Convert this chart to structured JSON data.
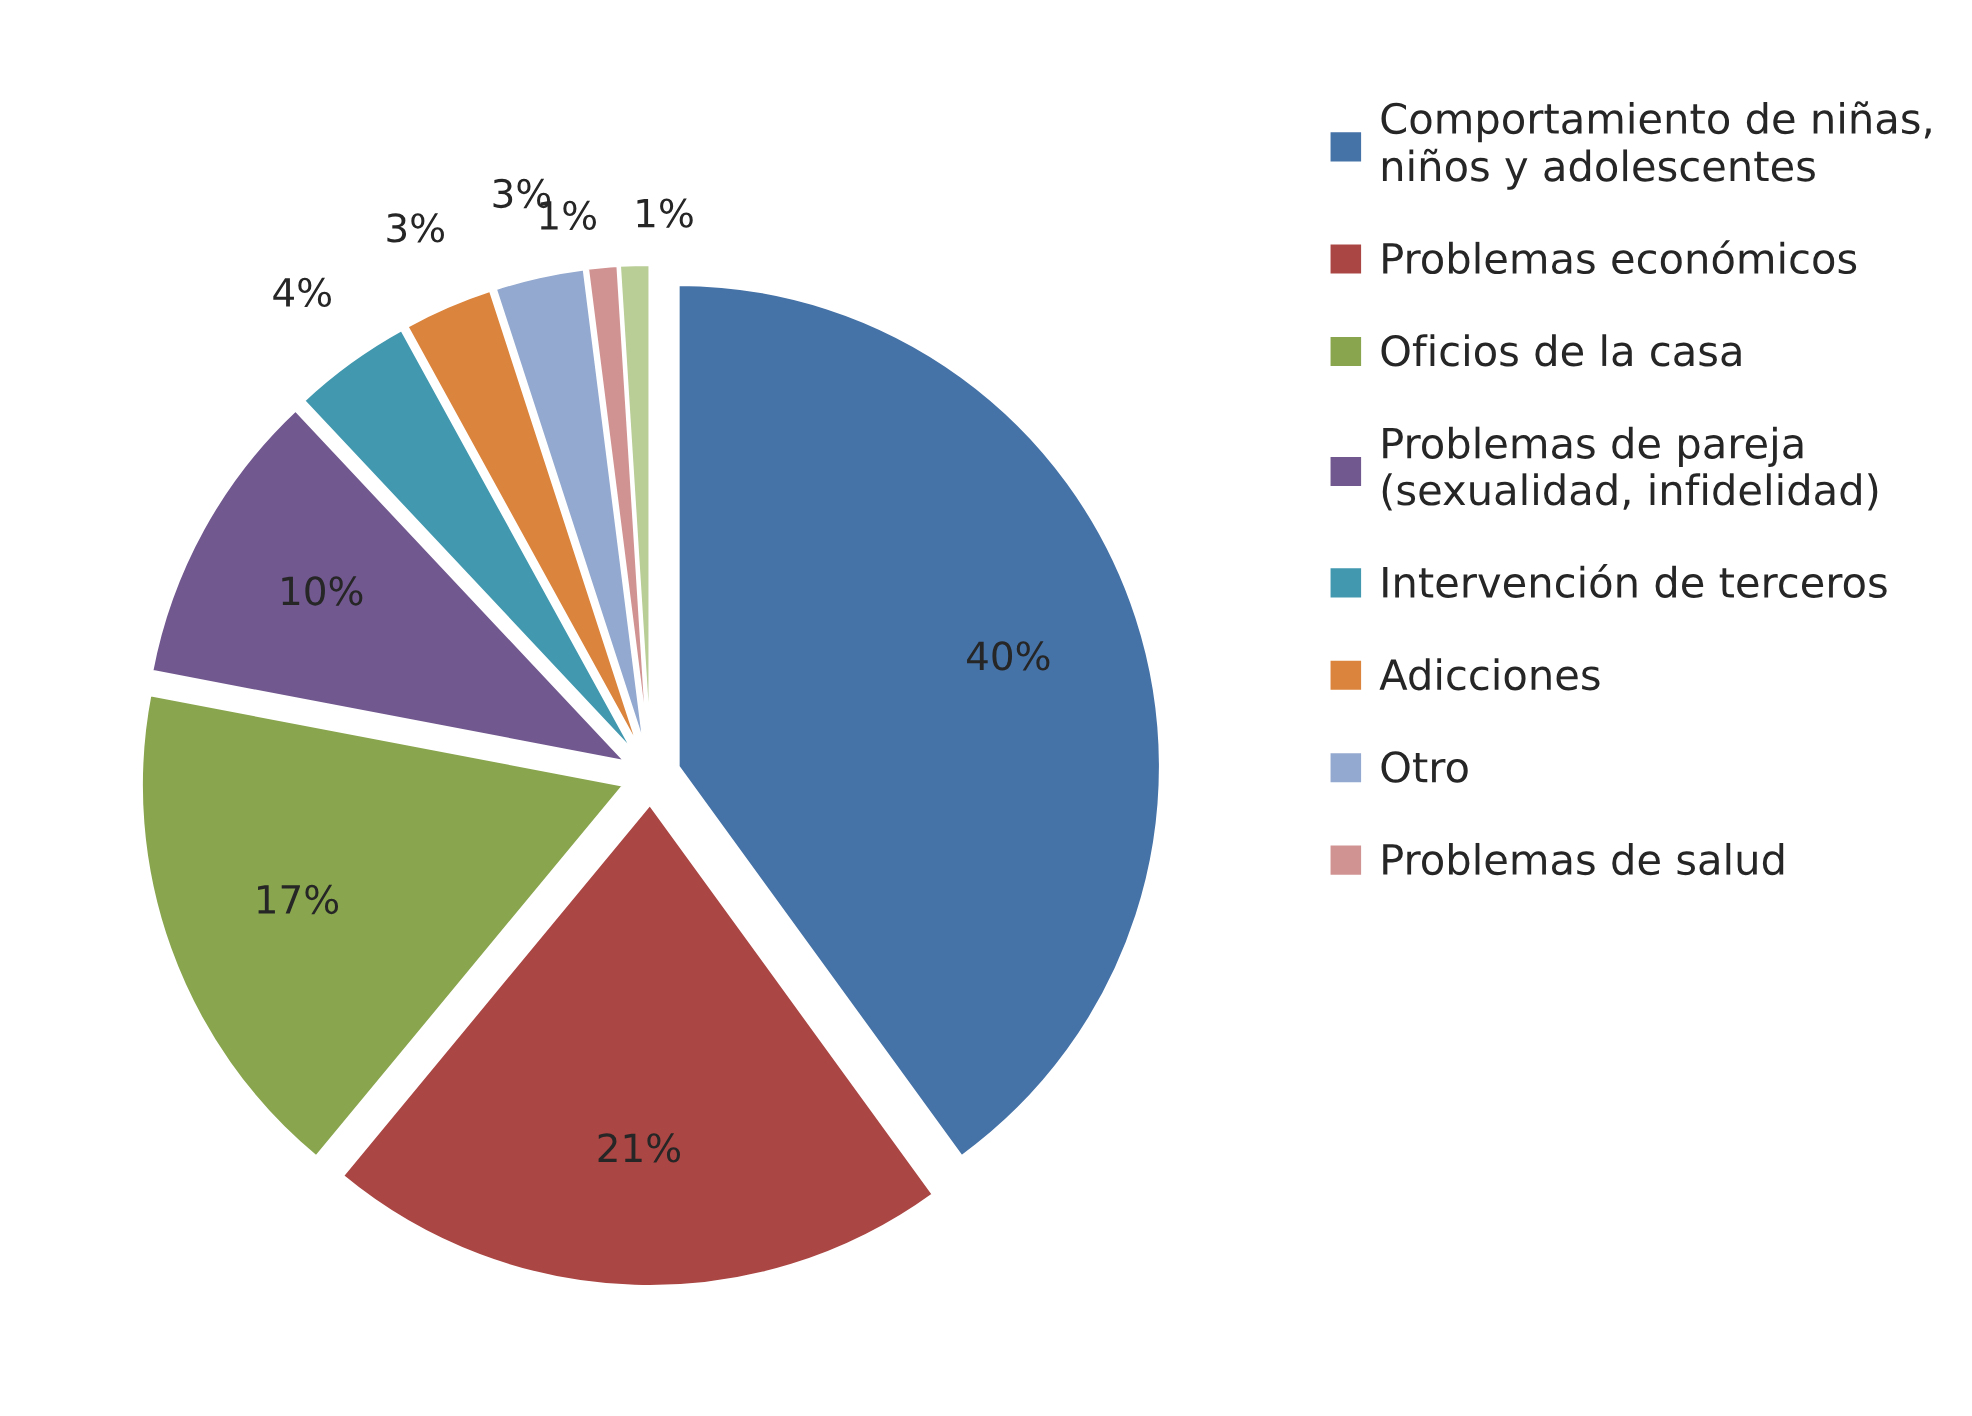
{
  "chart_data": {
    "type": "pie",
    "categories": [
      "Comportamiento de niñas,\nniños y adolescentes",
      "Problemas económicos",
      "Oficios de la casa",
      "Problemas de pareja\n(sexualidad, infidelidad)",
      "Intervención de terceros",
      "Adicciones",
      "Otro",
      "Problemas de salud",
      null
    ],
    "values": [
      40,
      21,
      17,
      10,
      4,
      3,
      3,
      1,
      1
    ],
    "colors": [
      "#4572a7",
      "#aa4643",
      "#89a54e",
      "#71588f",
      "#4198af",
      "#db843d",
      "#93a9cf",
      "#d19392",
      "#b9cd96"
    ],
    "value_labels": [
      "40%",
      "21%",
      "17%",
      "10%",
      "4%",
      "3%",
      "3%",
      "1%",
      "1%"
    ],
    "legend": "right"
  }
}
